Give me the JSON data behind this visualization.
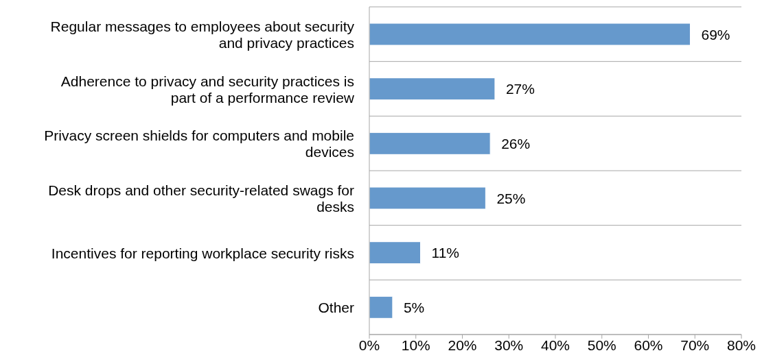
{
  "chart_data": {
    "type": "bar",
    "orientation": "horizontal",
    "categories": [
      "Regular messages to employees about security and privacy practices",
      "Adherence to privacy and security practices is part of a performance review",
      "Privacy screen shields for computers and mobile devices",
      "Desk drops and other security-related swags for desks",
      "Incentives for reporting workplace security risks",
      "Other"
    ],
    "values": [
      69,
      27,
      26,
      25,
      11,
      5
    ],
    "value_labels": [
      "69%",
      "27%",
      "26%",
      "25%",
      "11%",
      "5%"
    ],
    "color": "#6699cc",
    "xlim": [
      0,
      80
    ],
    "xticks": [
      {
        "value": 0,
        "label": "0%"
      },
      {
        "value": 10,
        "label": "10%"
      },
      {
        "value": 20,
        "label": "20%"
      },
      {
        "value": 30,
        "label": "30%"
      },
      {
        "value": 40,
        "label": "40%"
      },
      {
        "value": 50,
        "label": "50%"
      },
      {
        "value": 60,
        "label": "60%"
      },
      {
        "value": 70,
        "label": "70%"
      },
      {
        "value": 80,
        "label": "80%"
      }
    ],
    "grid": "y"
  }
}
